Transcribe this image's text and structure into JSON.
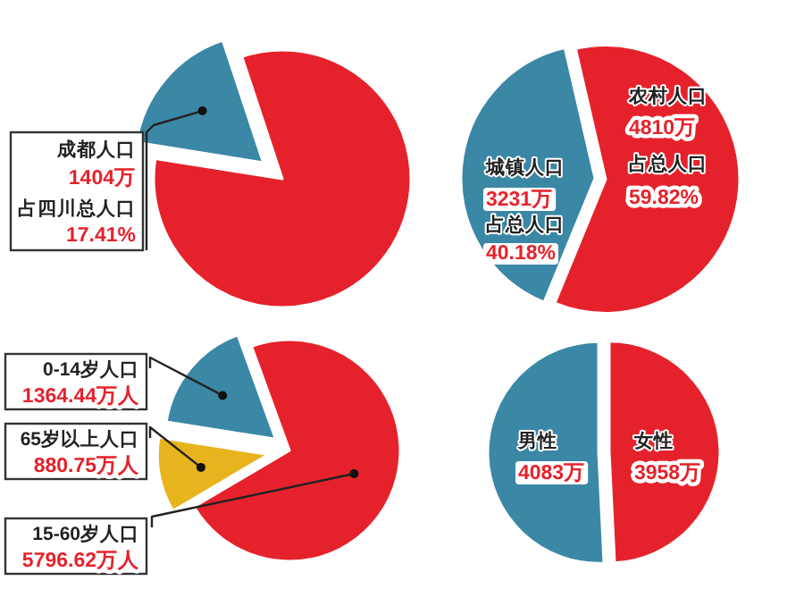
{
  "chart_data": [
    {
      "type": "pie",
      "categories": [
        "成都人口",
        null
      ],
      "values": [
        17.41,
        82.59
      ],
      "colors": [
        "#3b87a6",
        "#e5222b"
      ],
      "value_labels": [
        "17.41%",
        null
      ],
      "annotations": [
        "1404万",
        "占四川总人口"
      ]
    },
    {
      "type": "pie",
      "categories": [
        "城镇人口",
        "农村人口"
      ],
      "values": [
        3231,
        4810
      ],
      "colors": [
        "#3b87a6",
        "#e5222b"
      ],
      "value_labels": [
        "3231万",
        "4810万"
      ],
      "annotations": [
        "占总人口",
        "40.18%",
        "占总人口",
        "59.82%"
      ]
    },
    {
      "type": "pie",
      "categories": [
        "0-14岁人口",
        "65岁以上人口",
        "15-60岁人口"
      ],
      "values": [
        1364.44,
        880.75,
        5796.62
      ],
      "colors": [
        "#3b87a6",
        "#e8b41e",
        "#e5222b"
      ],
      "value_labels": [
        "1364.44万人",
        "880.75万人",
        "5796.62万人"
      ]
    },
    {
      "type": "pie",
      "categories": [
        "男性",
        "女性"
      ],
      "values": [
        4083,
        3958
      ],
      "colors": [
        "#3b87a6",
        "#e5222b"
      ],
      "value_labels": [
        "4083万",
        "3958万"
      ]
    }
  ]
}
